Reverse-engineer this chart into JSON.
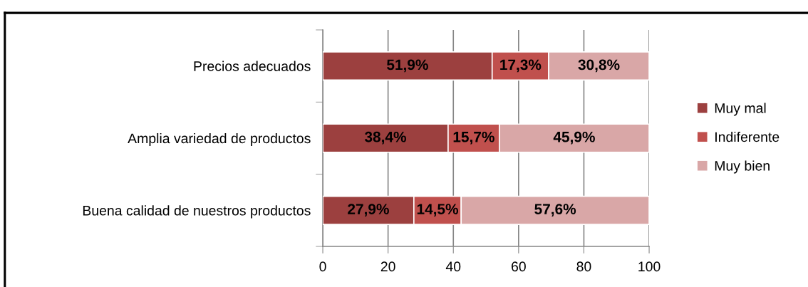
{
  "chart_data": {
    "type": "bar",
    "orientation": "horizontal",
    "stacked": true,
    "categories": [
      "Precios adecuados",
      "Amplia variedad de productos",
      "Buena calidad de nuestros productos"
    ],
    "series": [
      {
        "name": "Muy mal",
        "color": "#9c403f",
        "values": [
          51.9,
          38.4,
          27.9
        ],
        "value_labels": [
          "51,9%",
          "38,4%",
          "27,9%"
        ]
      },
      {
        "name": "Indiferente",
        "color": "#c0504d",
        "values": [
          17.3,
          15.7,
          14.5
        ],
        "value_labels": [
          "17,3%",
          "15,7%",
          "14,5%"
        ]
      },
      {
        "name": "Muy bien",
        "color": "#d9a7a7",
        "values": [
          30.8,
          45.9,
          57.6
        ],
        "value_labels": [
          "30,8%",
          "45,9%",
          "57,6%"
        ]
      }
    ],
    "xlim": [
      0,
      100
    ],
    "xticks": [
      0,
      20,
      40,
      60,
      80,
      100
    ],
    "grid": "x",
    "legend": "right"
  }
}
